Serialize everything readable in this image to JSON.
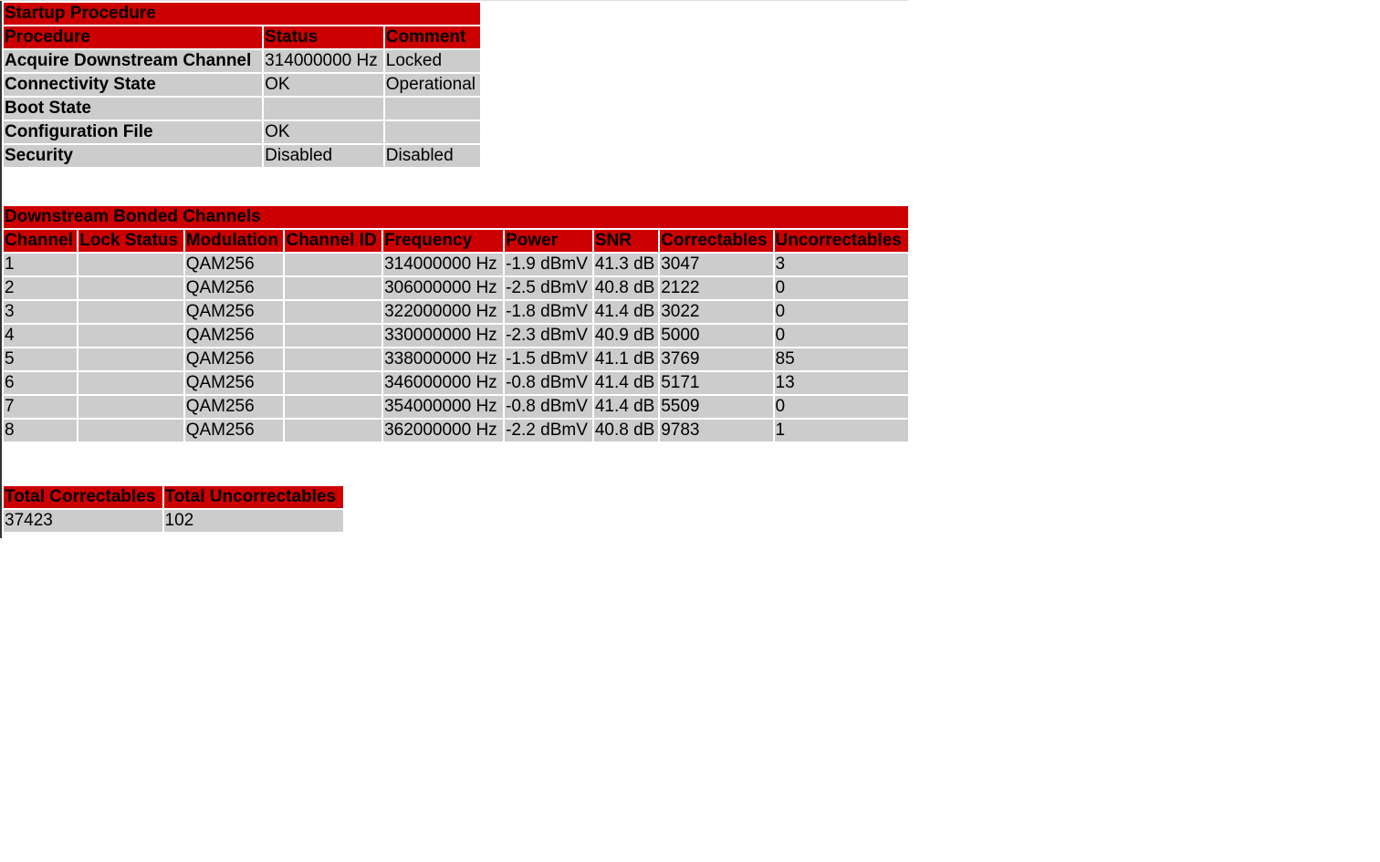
{
  "colors": {
    "header": "#cc0000",
    "cell": "#cccccc"
  },
  "startup": {
    "title": "Startup Procedure",
    "headers": [
      "Procedure",
      "Status",
      "Comment"
    ],
    "rows": [
      [
        "Acquire Downstream Channel",
        "314000000 Hz",
        "Locked"
      ],
      [
        "Connectivity State",
        "OK",
        "Operational"
      ],
      [
        "Boot State",
        "",
        ""
      ],
      [
        "Configuration File",
        "OK",
        ""
      ],
      [
        "Security",
        "Disabled",
        "Disabled"
      ]
    ]
  },
  "downstream": {
    "title": "Downstream Bonded Channels",
    "headers": [
      "Channel",
      "Lock Status",
      "Modulation",
      "Channel ID",
      "Frequency",
      "Power",
      "SNR",
      "Correctables",
      "Uncorrectables"
    ],
    "rows": [
      [
        "1",
        "",
        "QAM256",
        "",
        "314000000 Hz",
        "-1.9 dBmV",
        "41.3 dB",
        "3047",
        "3"
      ],
      [
        "2",
        "",
        "QAM256",
        "",
        "306000000 Hz",
        "-2.5 dBmV",
        "40.8 dB",
        "2122",
        "0"
      ],
      [
        "3",
        "",
        "QAM256",
        "",
        "322000000 Hz",
        "-1.8 dBmV",
        "41.4 dB",
        "3022",
        "0"
      ],
      [
        "4",
        "",
        "QAM256",
        "",
        "330000000 Hz",
        "-2.3 dBmV",
        "40.9 dB",
        "5000",
        "0"
      ],
      [
        "5",
        "",
        "QAM256",
        "",
        "338000000 Hz",
        "-1.5 dBmV",
        "41.1 dB",
        "3769",
        "85"
      ],
      [
        "6",
        "",
        "QAM256",
        "",
        "346000000 Hz",
        "-0.8 dBmV",
        "41.4 dB",
        "5171",
        "13"
      ],
      [
        "7",
        "",
        "QAM256",
        "",
        "354000000 Hz",
        "-0.8 dBmV",
        "41.4 dB",
        "5509",
        "0"
      ],
      [
        "8",
        "",
        "QAM256",
        "",
        "362000000 Hz",
        "-2.2 dBmV",
        "40.8 dB",
        "9783",
        "1"
      ]
    ]
  },
  "totals": {
    "headers": [
      "Total Correctables",
      "Total Uncorrectables"
    ],
    "values": [
      "37423",
      "102"
    ]
  }
}
